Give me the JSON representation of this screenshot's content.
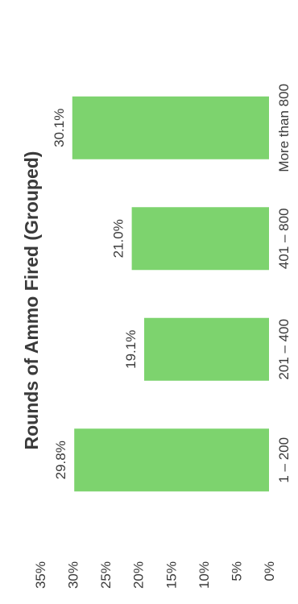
{
  "chart_data": {
    "type": "bar",
    "orientation": "vertical bars, page rotated 90 degrees counter-clockwise",
    "title": "Rounds of Ammo Fired (Grouped)",
    "categories": [
      "1 – 200",
      "201 – 400",
      "401 – 800",
      "More than 800"
    ],
    "values": [
      29.8,
      19.1,
      21.0,
      30.1
    ],
    "data_labels": [
      "29.8%",
      "19.1%",
      "21.0%",
      "30.1%"
    ],
    "ylim": [
      0,
      35
    ],
    "y_ticks": [
      "0%",
      "5%",
      "10%",
      "15%",
      "20%",
      "25%",
      "30%",
      "35%"
    ],
    "bar_color": "#7dd36e",
    "grid": false,
    "legend": "none"
  }
}
